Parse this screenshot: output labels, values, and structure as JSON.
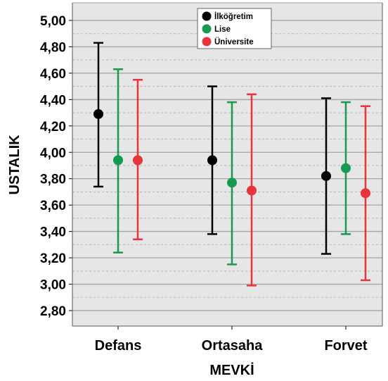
{
  "chart_data": {
    "type": "scatter",
    "subtype": "error-bar",
    "categories": [
      "Defans",
      "Ortasaha",
      "Forvet"
    ],
    "xlabel": "MEVKİ",
    "ylabel": "USTALIK",
    "ylim": [
      2.7,
      5.05
    ],
    "yticks": [
      "2,80",
      "3,00",
      "3,20",
      "3,40",
      "3,60",
      "3,80",
      "4,00",
      "4,20",
      "4,40",
      "4,60",
      "4,80",
      "5,00"
    ],
    "ytick_values": [
      2.8,
      3.0,
      3.2,
      3.4,
      3.6,
      3.8,
      4.0,
      4.2,
      4.4,
      4.6,
      4.8,
      5.0
    ],
    "grid": true,
    "legend_position": "top-center",
    "series": [
      {
        "name": "İlköğretim",
        "color": "#000000",
        "means": [
          4.29,
          3.94,
          3.82
        ],
        "lower": [
          3.74,
          3.38,
          3.23
        ],
        "upper": [
          4.83,
          4.5,
          4.41
        ]
      },
      {
        "name": "Lise",
        "color": "#1a9a50",
        "means": [
          3.94,
          3.77,
          3.88
        ],
        "lower": [
          3.24,
          3.15,
          3.38
        ],
        "upper": [
          4.63,
          4.38,
          4.38
        ]
      },
      {
        "name": "Üniversite",
        "color": "#e8343a",
        "means": [
          3.94,
          3.71,
          3.69
        ],
        "lower": [
          3.34,
          2.99,
          3.03
        ],
        "upper": [
          4.55,
          4.44,
          4.35
        ]
      }
    ]
  }
}
